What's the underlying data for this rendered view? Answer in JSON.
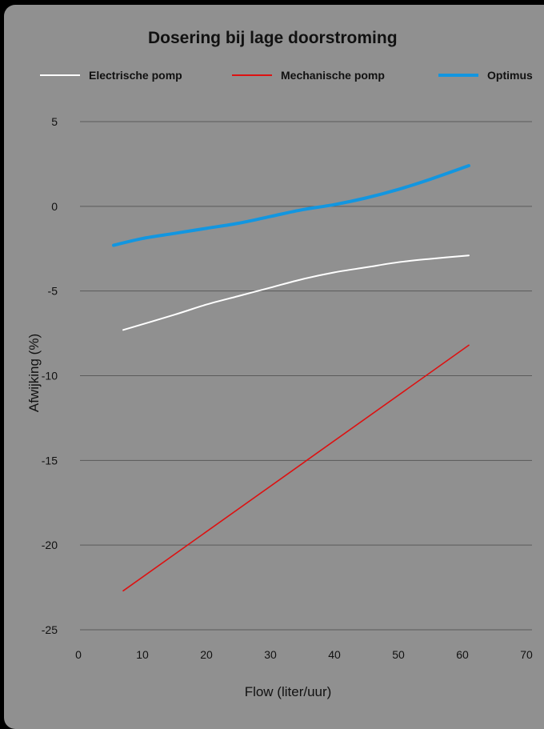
{
  "chart_data": {
    "type": "line",
    "title": "Dosering bij lage doorstroming",
    "xlabel": "Flow (liter/uur)",
    "ylabel": "Afwijking (%)",
    "xlim": [
      0,
      70
    ],
    "ylim": [
      -25,
      5
    ],
    "xticks": [
      "0",
      "10",
      "20",
      "30",
      "40",
      "50",
      "60",
      "70"
    ],
    "yticks": [
      "5",
      "0",
      "-5",
      "-10",
      "-15",
      "-20",
      "-25"
    ],
    "grid": "horizontal",
    "legend": "top",
    "series": [
      {
        "name": "Electrische pomp",
        "color": "#ffffff",
        "x": [
          7,
          15,
          20,
          25,
          30,
          35,
          40,
          45,
          50,
          55,
          61
        ],
        "y": [
          -7.3,
          -6.4,
          -5.8,
          -5.3,
          -4.8,
          -4.3,
          -3.9,
          -3.6,
          -3.3,
          -3.1,
          -2.9
        ]
      },
      {
        "name": "Mechanische pomp",
        "color": "#dd1111",
        "x": [
          7,
          61
        ],
        "y": [
          -22.7,
          -8.2
        ]
      },
      {
        "name": "Optimus",
        "color": "#1296e0",
        "x": [
          5.5,
          10,
          15,
          20,
          25,
          30,
          35,
          40,
          45,
          50,
          55,
          61
        ],
        "y": [
          -2.3,
          -1.9,
          -1.6,
          -1.3,
          -1.0,
          -0.6,
          -0.2,
          0.1,
          0.5,
          1.0,
          1.6,
          2.4
        ]
      }
    ]
  }
}
